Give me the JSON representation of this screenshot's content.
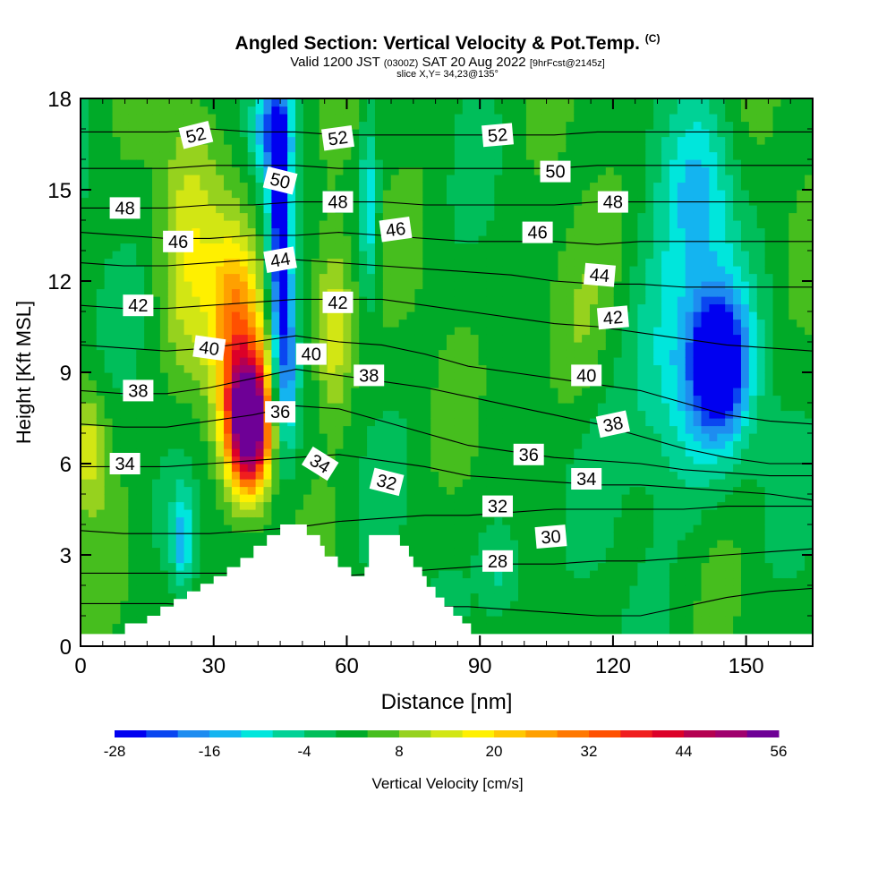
{
  "header": {
    "title": "Angled Section: Vertical Velocity & Pot.Temp.",
    "title_mark": "(C)",
    "subtitle_a": "Valid 1200 JST",
    "subtitle_b": "(0300Z)",
    "subtitle_c": "SAT 20 Aug 2022",
    "subtitle_d": "[9hrFcst@2145z]",
    "slice": "slice X,Y= 34,23@135°"
  },
  "chart_data": {
    "type": "heatmap",
    "xlabel": "Distance [nm]",
    "ylabel": "Height [Kft MSL]",
    "xlim": [
      0,
      165
    ],
    "ylim": [
      0,
      18
    ],
    "x_ticks": [
      "0",
      "30",
      "60",
      "90",
      "120",
      "150"
    ],
    "y_ticks": [
      "0",
      "3",
      "6",
      "9",
      "12",
      "15",
      "18"
    ],
    "colorbar": {
      "label": "Vertical Velocity [cm/s]",
      "min": -28,
      "step": 4,
      "tick_labels": [
        "-28",
        "-16",
        "-4",
        "8",
        "20",
        "32",
        "44",
        "56"
      ],
      "colors": [
        "#0000f0",
        "#0a46f0",
        "#1e8cf0",
        "#14b4f0",
        "#00e6dc",
        "#00d296",
        "#00be5a",
        "#00aa28",
        "#46be1e",
        "#96d21e",
        "#d2e614",
        "#fff000",
        "#ffc800",
        "#ffa000",
        "#ff7800",
        "#ff5000",
        "#f01e1e",
        "#dc0028",
        "#b40050",
        "#a0006e",
        "#6e0096"
      ]
    },
    "theta_contours": {
      "units": "°C",
      "levels": [
        {
          "label": "28",
          "h": [
            1.4,
            1.4,
            1.4,
            1.3,
            1.3,
            1.3,
            1.2,
            1.2,
            1.3,
            1.3,
            1.2,
            1.1,
            1.0,
            1.0,
            1.3,
            1.6,
            1.8,
            1.9
          ]
        },
        {
          "label": "30",
          "h": [
            2.4,
            2.4,
            2.4,
            2.4,
            2.4,
            2.3,
            2.3,
            2.4,
            2.5,
            2.6,
            2.7,
            2.7,
            2.8,
            2.8,
            2.9,
            3.0,
            3.1,
            3.2
          ]
        },
        {
          "label": "32",
          "h": [
            3.8,
            3.7,
            3.7,
            3.7,
            3.8,
            3.9,
            4.1,
            4.2,
            4.3,
            4.3,
            4.4,
            4.5,
            4.5,
            4.5,
            4.5,
            4.6,
            4.6,
            4.6
          ]
        },
        {
          "label": "34",
          "h": [
            5.9,
            5.9,
            5.9,
            6.0,
            6.1,
            6.2,
            6.3,
            6.1,
            5.9,
            5.6,
            5.5,
            5.4,
            5.3,
            5.3,
            5.2,
            5.1,
            5.0,
            4.8
          ]
        },
        {
          "label": "36",
          "h": [
            7.3,
            7.2,
            7.2,
            7.4,
            7.6,
            7.9,
            7.8,
            7.4,
            7.0,
            6.6,
            6.4,
            6.2,
            6.1,
            6.0,
            5.8,
            5.7,
            5.6,
            5.6
          ]
        },
        {
          "label": "38",
          "h": [
            8.4,
            8.3,
            8.3,
            8.5,
            8.8,
            9.1,
            8.9,
            8.7,
            8.5,
            8.2,
            7.9,
            7.6,
            7.3,
            6.9,
            6.5,
            6.2,
            6.0,
            6.0
          ]
        },
        {
          "label": "40",
          "h": [
            9.9,
            9.8,
            9.7,
            9.8,
            10.0,
            10.2,
            10.0,
            9.9,
            9.6,
            9.2,
            9.0,
            8.8,
            8.6,
            8.4,
            8.0,
            7.6,
            7.4,
            7.3
          ]
        },
        {
          "label": "42",
          "h": [
            11.2,
            11.1,
            11.1,
            11.2,
            11.3,
            11.4,
            11.4,
            11.4,
            11.2,
            11.0,
            10.8,
            10.6,
            10.5,
            10.3,
            10.1,
            9.9,
            9.8,
            9.7
          ]
        },
        {
          "label": "44",
          "h": [
            12.6,
            12.5,
            12.5,
            12.6,
            12.7,
            12.7,
            12.6,
            12.5,
            12.4,
            12.3,
            12.2,
            12.0,
            11.9,
            11.9,
            11.8,
            11.8,
            11.8,
            11.8
          ]
        },
        {
          "label": "46",
          "h": [
            13.6,
            13.5,
            13.4,
            13.4,
            13.5,
            13.5,
            13.6,
            13.5,
            13.4,
            13.3,
            13.3,
            13.3,
            13.2,
            13.3,
            13.3,
            13.3,
            13.3,
            13.3
          ]
        },
        {
          "label": "48",
          "h": [
            14.4,
            14.4,
            14.4,
            14.5,
            14.5,
            14.6,
            14.6,
            14.6,
            14.5,
            14.5,
            14.5,
            14.5,
            14.6,
            14.6,
            14.6,
            14.6,
            14.6,
            14.6
          ]
        },
        {
          "label": "50",
          "h": [
            15.7,
            15.7,
            15.7,
            15.8,
            15.8,
            15.8,
            15.7,
            15.7,
            15.7,
            15.7,
            15.7,
            15.7,
            15.8,
            15.8,
            15.8,
            15.8,
            15.8,
            15.8
          ]
        },
        {
          "label": "52",
          "h": [
            16.9,
            16.9,
            16.9,
            17.0,
            16.9,
            16.9,
            16.8,
            16.8,
            16.8,
            16.8,
            16.8,
            16.8,
            16.9,
            16.9,
            16.9,
            16.9,
            16.9,
            16.9
          ]
        }
      ],
      "labels": [
        {
          "text": "52",
          "x": 26,
          "y": 16.8,
          "rot": -14
        },
        {
          "text": "52",
          "x": 58,
          "y": 16.7,
          "rot": -8
        },
        {
          "text": "52",
          "x": 94,
          "y": 16.8,
          "rot": -5
        },
        {
          "text": "50",
          "x": 45,
          "y": 15.3,
          "rot": 14
        },
        {
          "text": "50",
          "x": 107,
          "y": 15.6,
          "rot": 0
        },
        {
          "text": "48",
          "x": 10,
          "y": 14.4,
          "rot": 0
        },
        {
          "text": "48",
          "x": 58,
          "y": 14.6,
          "rot": 0
        },
        {
          "text": "48",
          "x": 120,
          "y": 14.6,
          "rot": 0
        },
        {
          "text": "46",
          "x": 22,
          "y": 13.3,
          "rot": 0
        },
        {
          "text": "46",
          "x": 71,
          "y": 13.7,
          "rot": -8
        },
        {
          "text": "46",
          "x": 103,
          "y": 13.6,
          "rot": 0
        },
        {
          "text": "44",
          "x": 45,
          "y": 12.7,
          "rot": -10
        },
        {
          "text": "44",
          "x": 117,
          "y": 12.2,
          "rot": 5
        },
        {
          "text": "42",
          "x": 13,
          "y": 11.2,
          "rot": 0
        },
        {
          "text": "42",
          "x": 58,
          "y": 11.3,
          "rot": 0
        },
        {
          "text": "42",
          "x": 120,
          "y": 10.8,
          "rot": -5
        },
        {
          "text": "40",
          "x": 29,
          "y": 9.8,
          "rot": 8
        },
        {
          "text": "40",
          "x": 52,
          "y": 9.6,
          "rot": 0
        },
        {
          "text": "40",
          "x": 114,
          "y": 8.9,
          "rot": 0
        },
        {
          "text": "38",
          "x": 13,
          "y": 8.4,
          "rot": 0
        },
        {
          "text": "38",
          "x": 65,
          "y": 8.9,
          "rot": 0
        },
        {
          "text": "38",
          "x": 120,
          "y": 7.3,
          "rot": -12
        },
        {
          "text": "36",
          "x": 45,
          "y": 7.7,
          "rot": 0
        },
        {
          "text": "36",
          "x": 101,
          "y": 6.3,
          "rot": 0
        },
        {
          "text": "34",
          "x": 10,
          "y": 6.0,
          "rot": 0
        },
        {
          "text": "34",
          "x": 54,
          "y": 6.0,
          "rot": 32
        },
        {
          "text": "34",
          "x": 114,
          "y": 5.5,
          "rot": 0
        },
        {
          "text": "32",
          "x": 69,
          "y": 5.4,
          "rot": 14
        },
        {
          "text": "32",
          "x": 94,
          "y": 4.6,
          "rot": 0
        },
        {
          "text": "30",
          "x": 106,
          "y": 3.6,
          "rot": -5
        },
        {
          "text": "28",
          "x": 94,
          "y": 2.8,
          "rot": 0
        }
      ]
    },
    "vertical_velocity_features": [
      {
        "name": "updraft core",
        "x": 38,
        "y": 7.3,
        "sx": 4.5,
        "sy": 2.0,
        "amp": 62
      },
      {
        "name": "updraft tower",
        "x": 35,
        "y": 10.5,
        "sx": 6,
        "sy": 3.4,
        "amp": 28
      },
      {
        "name": "updraft left flank",
        "x": 24,
        "y": 13,
        "sx": 6,
        "sy": 5,
        "amp": 10
      },
      {
        "name": "updraft east",
        "x": 57,
        "y": 10.5,
        "sx": 4.5,
        "sy": 2.8,
        "amp": 17
      },
      {
        "name": "downdraft column",
        "x": 45,
        "y": 13,
        "sx": 2.6,
        "sy": 5,
        "amp": -30
      },
      {
        "name": "downdraft column low",
        "x": 47,
        "y": 9,
        "sx": 2.2,
        "sy": 2.5,
        "amp": -14
      },
      {
        "name": "downdraft top",
        "x": 43,
        "y": 17,
        "sx": 4,
        "sy": 1.5,
        "amp": -18
      },
      {
        "name": "downdraft near 66nm",
        "x": 65,
        "y": 14.5,
        "sx": 2,
        "sy": 3,
        "amp": -14
      },
      {
        "name": "east downdraft core",
        "x": 144,
        "y": 9.3,
        "sx": 6,
        "sy": 2.2,
        "amp": -30
      },
      {
        "name": "east downdraft",
        "x": 136,
        "y": 9,
        "sx": 13,
        "sy": 4,
        "amp": -16
      },
      {
        "name": "east downdraft top",
        "x": 140,
        "y": 15,
        "sx": 8,
        "sy": 3,
        "amp": -12
      },
      {
        "name": "low downdraft 22nm",
        "x": 23,
        "y": 3.5,
        "sx": 2.2,
        "sy": 1.5,
        "amp": -16
      },
      {
        "name": "low downdraft 94nm",
        "x": 95,
        "y": 2.5,
        "sx": 5,
        "sy": 1.8,
        "amp": -10
      },
      {
        "name": "mid updraft 2",
        "x": 2,
        "y": 6.5,
        "sx": 4,
        "sy": 2,
        "amp": 12
      },
      {
        "name": "weak updraft 110",
        "x": 110,
        "y": 10.5,
        "sx": 10,
        "sy": 3,
        "amp": 6
      }
    ],
    "terrain_nm_kft": [
      [
        0,
        0.4
      ],
      [
        10,
        0.4
      ],
      [
        10,
        0.75
      ],
      [
        15,
        0.75
      ],
      [
        15,
        1.0
      ],
      [
        18,
        1.0
      ],
      [
        18,
        1.3
      ],
      [
        21,
        1.3
      ],
      [
        21,
        1.55
      ],
      [
        24,
        1.55
      ],
      [
        24,
        1.8
      ],
      [
        27,
        1.8
      ],
      [
        27,
        2.05
      ],
      [
        30,
        2.05
      ],
      [
        30,
        2.3
      ],
      [
        33,
        2.3
      ],
      [
        33,
        2.6
      ],
      [
        36,
        2.6
      ],
      [
        36,
        2.9
      ],
      [
        39,
        2.9
      ],
      [
        39,
        3.3
      ],
      [
        42,
        3.3
      ],
      [
        42,
        3.65
      ],
      [
        45,
        3.65
      ],
      [
        45,
        4.0
      ],
      [
        51,
        4.0
      ],
      [
        51,
        3.65
      ],
      [
        54,
        3.65
      ],
      [
        54,
        3.3
      ],
      [
        55,
        3.3
      ],
      [
        55,
        2.95
      ],
      [
        58,
        2.95
      ],
      [
        58,
        2.6
      ],
      [
        61,
        2.6
      ],
      [
        61,
        2.3
      ],
      [
        64,
        2.3
      ],
      [
        64,
        2.6
      ],
      [
        65,
        2.6
      ],
      [
        65,
        3.65
      ],
      [
        72,
        3.65
      ],
      [
        72,
        3.3
      ],
      [
        74,
        3.3
      ],
      [
        74,
        2.95
      ],
      [
        75,
        2.95
      ],
      [
        75,
        2.6
      ],
      [
        77,
        2.6
      ],
      [
        77,
        2.3
      ],
      [
        78,
        2.3
      ],
      [
        78,
        1.95
      ],
      [
        80,
        1.95
      ],
      [
        80,
        1.6
      ],
      [
        82,
        1.6
      ],
      [
        82,
        1.3
      ],
      [
        84,
        1.3
      ],
      [
        84,
        1.0
      ],
      [
        86,
        1.0
      ],
      [
        86,
        0.75
      ],
      [
        88,
        0.75
      ],
      [
        88,
        0.4
      ],
      [
        165,
        0.4
      ]
    ]
  }
}
